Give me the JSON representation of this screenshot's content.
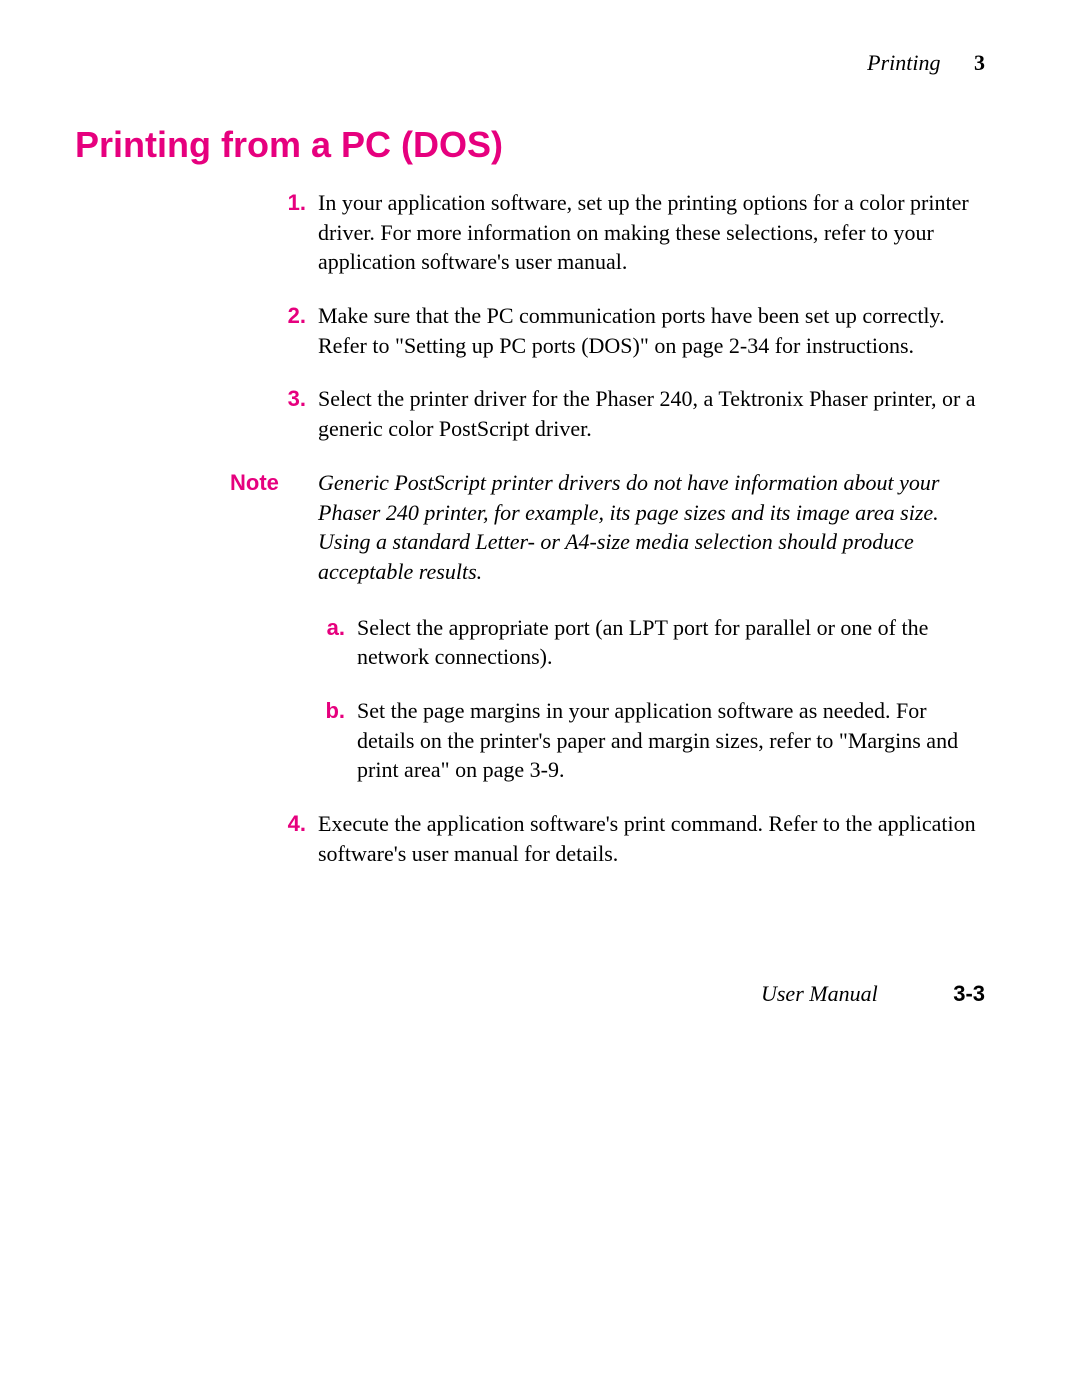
{
  "colors": {
    "magenta": "#e6007e",
    "black": "#000000",
    "background": "#ffffff"
  },
  "typography": {
    "serif_family": "Palatino",
    "sans_family": "Helvetica",
    "title_size_pt": 27,
    "body_size_pt": 16,
    "header_size_pt": 16
  },
  "header": {
    "chapter": "Printing",
    "number": "3"
  },
  "title": "Printing from a PC (DOS)",
  "items": [
    {
      "num": "1.",
      "text": "In your application software, set up the printing options for a color printer driver.  For more information on making these selections, refer to your application software's user manual."
    },
    {
      "num": "2.",
      "text": "Make sure that the PC communication ports have been set up correctly.  Refer to \"Setting up PC ports (DOS)\" on page 2-34 for instructions."
    },
    {
      "num": "3.",
      "text": "Select the printer driver for the Phaser 240, a Tektronix Phaser printer, or a generic color PostScript driver."
    }
  ],
  "note": {
    "label": "Note",
    "text": "Generic PostScript printer drivers do not have information about your Phaser 240 printer, for example, its page sizes and its image area size.  Using a standard Letter- or A4-size media selection should produce acceptable results."
  },
  "subitems": [
    {
      "num": "a.",
      "text": "Select the appropriate port (an LPT port for parallel or one of the network connections)."
    },
    {
      "num": "b.",
      "text": "Set the page margins in your application software as needed. For details on the printer's paper and margin sizes, refer to \"Margins and print area\" on page 3-9."
    }
  ],
  "item4": {
    "num": "4.",
    "text": "Execute the application software's print command.  Refer to the application software's user manual for details."
  },
  "footer": {
    "label": "User Manual",
    "page": "3-3"
  }
}
